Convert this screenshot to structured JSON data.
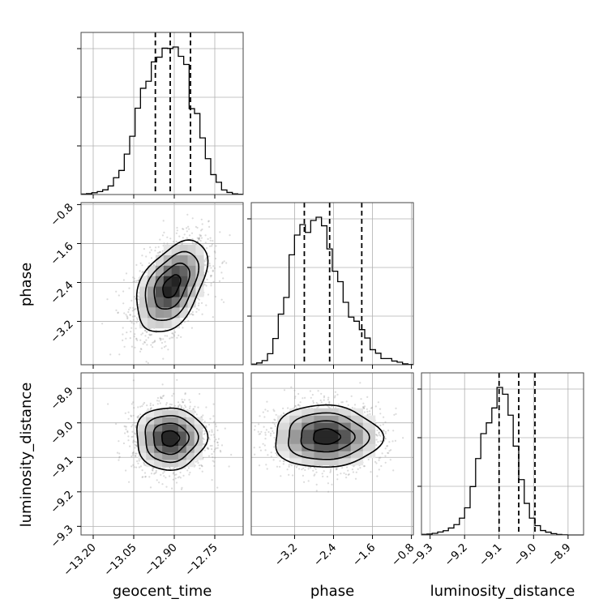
{
  "chart_data": {
    "type": "corner",
    "parameters": [
      "geocent_time",
      "phase",
      "luminosity_distance"
    ],
    "quantile_style": "dashed",
    "grid": true,
    "axes": {
      "geocent_time": {
        "ticks": [
          "−13.20",
          "−13.05",
          "−12.90",
          "−12.75"
        ],
        "tick_values": [
          -13.2,
          -13.05,
          -12.9,
          -12.75
        ],
        "range": [
          -13.245,
          -12.645
        ]
      },
      "phase": {
        "ticks": [
          "−3.2",
          "−2.4",
          "−1.6",
          "−0.8"
        ],
        "tick_values": [
          -3.2,
          -2.4,
          -1.6,
          -0.8
        ],
        "range": [
          -4.09,
          -0.76
        ]
      },
      "luminosity_distance": {
        "ticks": [
          "−9.3",
          "−9.2",
          "−9.1",
          "−9.0",
          "−8.9"
        ],
        "tick_values": [
          -9.3,
          -9.2,
          -9.1,
          -9.0,
          -8.9
        ],
        "range": [
          -9.325,
          -8.855
        ]
      }
    },
    "marginals": [
      {
        "parameter": "geocent_time",
        "quantiles": [
          -12.97,
          -12.915,
          -12.84
        ],
        "bins_x": [
          -13.245,
          -13.225,
          -13.205,
          -13.185,
          -13.165,
          -13.145,
          -13.125,
          -13.105,
          -13.085,
          -13.065,
          -13.045,
          -13.025,
          -13.005,
          -12.985,
          -12.965,
          -12.945,
          -12.925,
          -12.905,
          -12.885,
          -12.865,
          -12.845,
          -12.825,
          -12.805,
          -12.785,
          -12.765,
          -12.745,
          -12.725,
          -12.705,
          -12.685,
          -12.665,
          -12.645
        ],
        "counts": [
          0.3,
          0.6,
          1.2,
          2.0,
          3.2,
          5.8,
          11.4,
          16.3,
          27.4,
          39.5,
          58.5,
          72.0,
          76.8,
          89.9,
          93.1,
          99.2,
          99.0,
          100.0,
          93.7,
          88.2,
          58.2,
          54.9,
          38.4,
          24.3,
          13.5,
          8.3,
          3.1,
          1.4,
          0.5,
          0.2
        ]
      },
      {
        "parameter": "phase",
        "quantiles": [
          -3.0,
          -2.48,
          -1.82
        ],
        "bins_x": [
          -4.09,
          -3.979,
          -3.868,
          -3.757,
          -3.646,
          -3.535,
          -3.424,
          -3.313,
          -3.202,
          -3.091,
          -2.98,
          -2.869,
          -2.758,
          -2.647,
          -2.536,
          -2.425,
          -2.314,
          -2.203,
          -2.092,
          -1.981,
          -1.87,
          -1.759,
          -1.648,
          -1.537,
          -1.426,
          -1.315,
          -1.204,
          -1.093,
          -0.982,
          -0.871,
          -0.76
        ],
        "counts": [
          0.4,
          1.2,
          2.8,
          7.5,
          17.8,
          34.3,
          45.6,
          74.5,
          87.9,
          95.0,
          89.7,
          97.8,
          100.0,
          94.2,
          78.5,
          63.4,
          56.3,
          42.3,
          32.3,
          29.5,
          23.8,
          18.1,
          10.2,
          7.8,
          4.2,
          4.2,
          2.5,
          1.7,
          0.6,
          0.2
        ]
      },
      {
        "parameter": "luminosity_distance",
        "quantiles": [
          -9.1,
          -9.043,
          -8.996
        ],
        "bins_x": [
          -9.325,
          -9.309,
          -9.294,
          -9.278,
          -9.262,
          -9.247,
          -9.231,
          -9.215,
          -9.2,
          -9.184,
          -9.168,
          -9.153,
          -9.137,
          -9.121,
          -9.106,
          -9.09,
          -9.074,
          -9.059,
          -9.043,
          -9.027,
          -9.012,
          -8.996,
          -8.98,
          -8.965,
          -8.949,
          -8.933,
          -8.918,
          -8.902,
          -8.886,
          -8.871,
          -8.855
        ],
        "counts": [
          0.4,
          0.6,
          1.1,
          2.0,
          2.9,
          4.7,
          7.0,
          11.4,
          18.4,
          32.8,
          51.8,
          68.7,
          76.0,
          86.1,
          100.0,
          95.4,
          81.2,
          60.2,
          37.5,
          21.4,
          11.4,
          6.3,
          3.0,
          1.9,
          0.9,
          0.3,
          0.1,
          0.0,
          0.0,
          0.0
        ]
      }
    ],
    "joint": [
      {
        "x": "geocent_time",
        "y": "phase",
        "mean": [
          -12.91,
          -2.48
        ],
        "sd": [
          0.065,
          0.47
        ],
        "correlation": 0.45
      },
      {
        "x": "geocent_time",
        "y": "luminosity_distance",
        "mean": [
          -12.915,
          -9.045
        ],
        "sd": [
          0.065,
          0.045
        ],
        "correlation": 0.0
      },
      {
        "x": "phase",
        "y": "luminosity_distance",
        "mean": [
          -2.55,
          -9.04
        ],
        "sd": [
          0.55,
          0.045
        ],
        "correlation": 0.0
      }
    ]
  }
}
